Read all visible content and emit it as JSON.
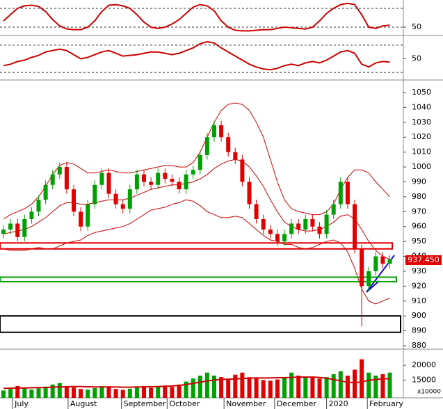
{
  "chart_data": [
    {
      "type": "line",
      "ylim": [
        40,
        90
      ],
      "yticks": [
        50
      ],
      "levels": [
        50,
        80
      ],
      "series": [
        {
          "color": "#cc0000",
          "values": [
            60,
            70,
            80,
            84,
            85,
            83,
            75,
            62,
            52,
            47,
            46,
            46,
            50,
            60,
            75,
            85,
            86,
            84,
            80,
            70,
            58,
            50,
            48,
            50,
            55,
            62,
            72,
            82,
            86,
            84,
            76,
            60,
            50,
            45,
            44,
            44,
            45,
            46,
            46,
            48,
            50,
            49,
            48,
            47,
            50,
            60,
            72,
            80,
            86,
            88,
            86,
            70,
            50,
            48,
            52,
            53
          ]
        }
      ]
    },
    {
      "type": "line",
      "ylim": [
        22,
        80
      ],
      "yticks": [
        50
      ],
      "levels": [
        30,
        70
      ],
      "series": [
        {
          "color": "#cc0000",
          "values": [
            40,
            42,
            46,
            48,
            52,
            55,
            60,
            62,
            64,
            62,
            56,
            50,
            52,
            56,
            60,
            62,
            58,
            54,
            55,
            56,
            58,
            60,
            60,
            58,
            56,
            58,
            62,
            66,
            72,
            75,
            73,
            66,
            60,
            54,
            48,
            42,
            38,
            35,
            34,
            36,
            40,
            42,
            40,
            44,
            46,
            44,
            48,
            54,
            60,
            62,
            58,
            42,
            38,
            44,
            46,
            45
          ]
        }
      ]
    },
    {
      "type": "candlestick",
      "ylim": [
        878.6,
        1057
      ],
      "yticks": [
        880,
        890,
        900,
        910,
        920,
        930,
        940,
        950,
        960,
        970,
        980,
        990,
        1000,
        1010,
        1020,
        1030,
        1040,
        1050
      ],
      "up_color": "#00a000",
      "down_color": "#e00000",
      "open": [
        955,
        958,
        962,
        953,
        965,
        970,
        978,
        988,
        995,
        1000,
        985,
        970,
        960,
        975,
        988,
        996,
        982,
        975,
        972,
        985,
        995,
        990,
        988,
        996,
        992,
        990,
        985,
        995,
        998,
        1008,
        1020,
        1028,
        1020,
        1010,
        1005,
        990,
        975,
        965,
        958,
        955,
        950,
        955,
        962,
        958,
        965,
        960,
        955,
        968,
        975,
        990,
        975,
        945,
        920,
        930,
        940,
        935
      ],
      "high": [
        961,
        965,
        965,
        968,
        973,
        981,
        991,
        998,
        1003,
        1003,
        988,
        973,
        978,
        991,
        999,
        999,
        985,
        978,
        988,
        998,
        998,
        993,
        999,
        999,
        995,
        993,
        998,
        1001,
        1011,
        1023,
        1031,
        1031,
        1023,
        1013,
        1008,
        993,
        978,
        968,
        961,
        958,
        958,
        965,
        965,
        968,
        968,
        963,
        971,
        978,
        993,
        993,
        978,
        948,
        933,
        943,
        943,
        941
      ],
      "low": [
        952,
        955,
        950,
        950,
        962,
        967,
        975,
        985,
        992,
        982,
        967,
        957,
        957,
        972,
        985,
        979,
        972,
        969,
        969,
        982,
        987,
        985,
        985,
        989,
        987,
        982,
        982,
        992,
        995,
        1005,
        1017,
        1017,
        1007,
        1002,
        987,
        972,
        962,
        955,
        952,
        947,
        947,
        952,
        955,
        955,
        957,
        952,
        952,
        965,
        972,
        972,
        942,
        893,
        917,
        927,
        932,
        932
      ],
      "close": [
        958,
        962,
        953,
        965,
        970,
        978,
        988,
        995,
        1000,
        985,
        970,
        960,
        975,
        988,
        996,
        982,
        975,
        972,
        985,
        995,
        990,
        988,
        996,
        992,
        990,
        985,
        995,
        998,
        1008,
        1020,
        1028,
        1020,
        1010,
        1005,
        990,
        975,
        965,
        958,
        955,
        950,
        955,
        962,
        958,
        965,
        960,
        955,
        968,
        975,
        990,
        975,
        945,
        920,
        930,
        940,
        935,
        938
      ],
      "series": [
        {
          "color": "#cc0000",
          "values": [
            965,
            968,
            970,
            972,
            975,
            980,
            987,
            995,
            1001,
            1003,
            1002,
            999,
            996,
            996,
            997,
            998,
            997,
            996,
            996,
            997,
            998,
            999,
            1000,
            1001,
            1001,
            1000,
            1000,
            1003,
            1010,
            1020,
            1030,
            1038,
            1042,
            1043,
            1042,
            1038,
            1030,
            1020,
            1005,
            990,
            978,
            972,
            970,
            969,
            968,
            968,
            970,
            975,
            985,
            993,
            998,
            998,
            996,
            990,
            985,
            980
          ]
        },
        {
          "color": "#cc0000",
          "values": [
            955,
            956,
            957,
            958,
            960,
            963,
            966,
            970,
            974,
            976,
            976,
            975,
            975,
            976,
            977,
            978,
            978,
            978,
            979,
            981,
            983,
            985,
            986,
            987,
            988,
            988,
            989,
            990,
            992,
            995,
            999,
            1002,
            1004,
            1005,
            1004,
            1000,
            994,
            987,
            978,
            970,
            963,
            960,
            958,
            957,
            957,
            958,
            960,
            963,
            967,
            968,
            965,
            958,
            950,
            944,
            940,
            938
          ]
        },
        {
          "color": "#cc0000",
          "values": [
            945,
            944,
            944,
            944,
            945,
            946,
            945,
            945,
            947,
            949,
            950,
            951,
            954,
            956,
            957,
            958,
            959,
            960,
            962,
            965,
            968,
            971,
            972,
            973,
            975,
            976,
            978,
            977,
            974,
            970,
            968,
            966,
            966,
            967,
            966,
            962,
            958,
            954,
            951,
            950,
            948,
            948,
            946,
            945,
            946,
            948,
            950,
            951,
            949,
            943,
            932,
            918,
            910,
            908,
            910,
            912
          ]
        }
      ],
      "zones": [
        {
          "low": 945,
          "high": 949,
          "color": "#e00000"
        },
        {
          "low": 923,
          "high": 926,
          "color": "#00a000"
        },
        {
          "low": 889,
          "high": 900,
          "color": "#000000"
        }
      ],
      "last_price": {
        "value": 937.45,
        "label": "937.450"
      }
    },
    {
      "type": "bar",
      "ylim": [
        9000,
        24700
      ],
      "yticks": [
        15000,
        20000
      ],
      "unit_label": "x10000",
      "values": [
        11500,
        12000,
        13000,
        12500,
        11800,
        12200,
        12800,
        13500,
        14000,
        13000,
        12500,
        12000,
        11800,
        12300,
        12900,
        12600,
        12000,
        11700,
        12100,
        12500,
        13000,
        12400,
        12800,
        13200,
        12700,
        13500,
        14500,
        15500,
        16500,
        17500,
        16500,
        16000,
        15200,
        16800,
        17500,
        16000,
        15500,
        15000,
        14800,
        15200,
        16000,
        17500,
        16500,
        15800,
        16200,
        15500,
        16000,
        17000,
        18000,
        16500,
        18500,
        22000,
        17500,
        16500,
        17000,
        17500
      ],
      "ma": {
        "color": "#cc0000",
        "values": [
          12200,
          12250,
          12300,
          12350,
          12400,
          12450,
          12500,
          12600,
          12700,
          12750,
          12800,
          12800,
          12750,
          12700,
          12700,
          12700,
          12650,
          12600,
          12600,
          12650,
          12700,
          12750,
          12800,
          12900,
          13000,
          13200,
          13500,
          13900,
          14300,
          14700,
          15000,
          15200,
          15300,
          15400,
          15500,
          15600,
          15700,
          15700,
          15700,
          15800,
          15800,
          15900,
          16000,
          16000,
          16000,
          15900,
          15600,
          15200,
          14700,
          14300,
          14100,
          14400,
          14900,
          15200,
          15400,
          15500
        ]
      },
      "xticks": [
        {
          "value": 1.3,
          "label": "July"
        },
        {
          "value": 9.2,
          "label": "August"
        },
        {
          "value": 16.8,
          "label": "September"
        },
        {
          "value": 23.3,
          "label": "October"
        },
        {
          "value": 31.4,
          "label": "November"
        },
        {
          "value": 38.6,
          "label": "December"
        },
        {
          "value": 46,
          "label": "2020"
        },
        {
          "value": 51.8,
          "label": "February"
        }
      ]
    }
  ]
}
